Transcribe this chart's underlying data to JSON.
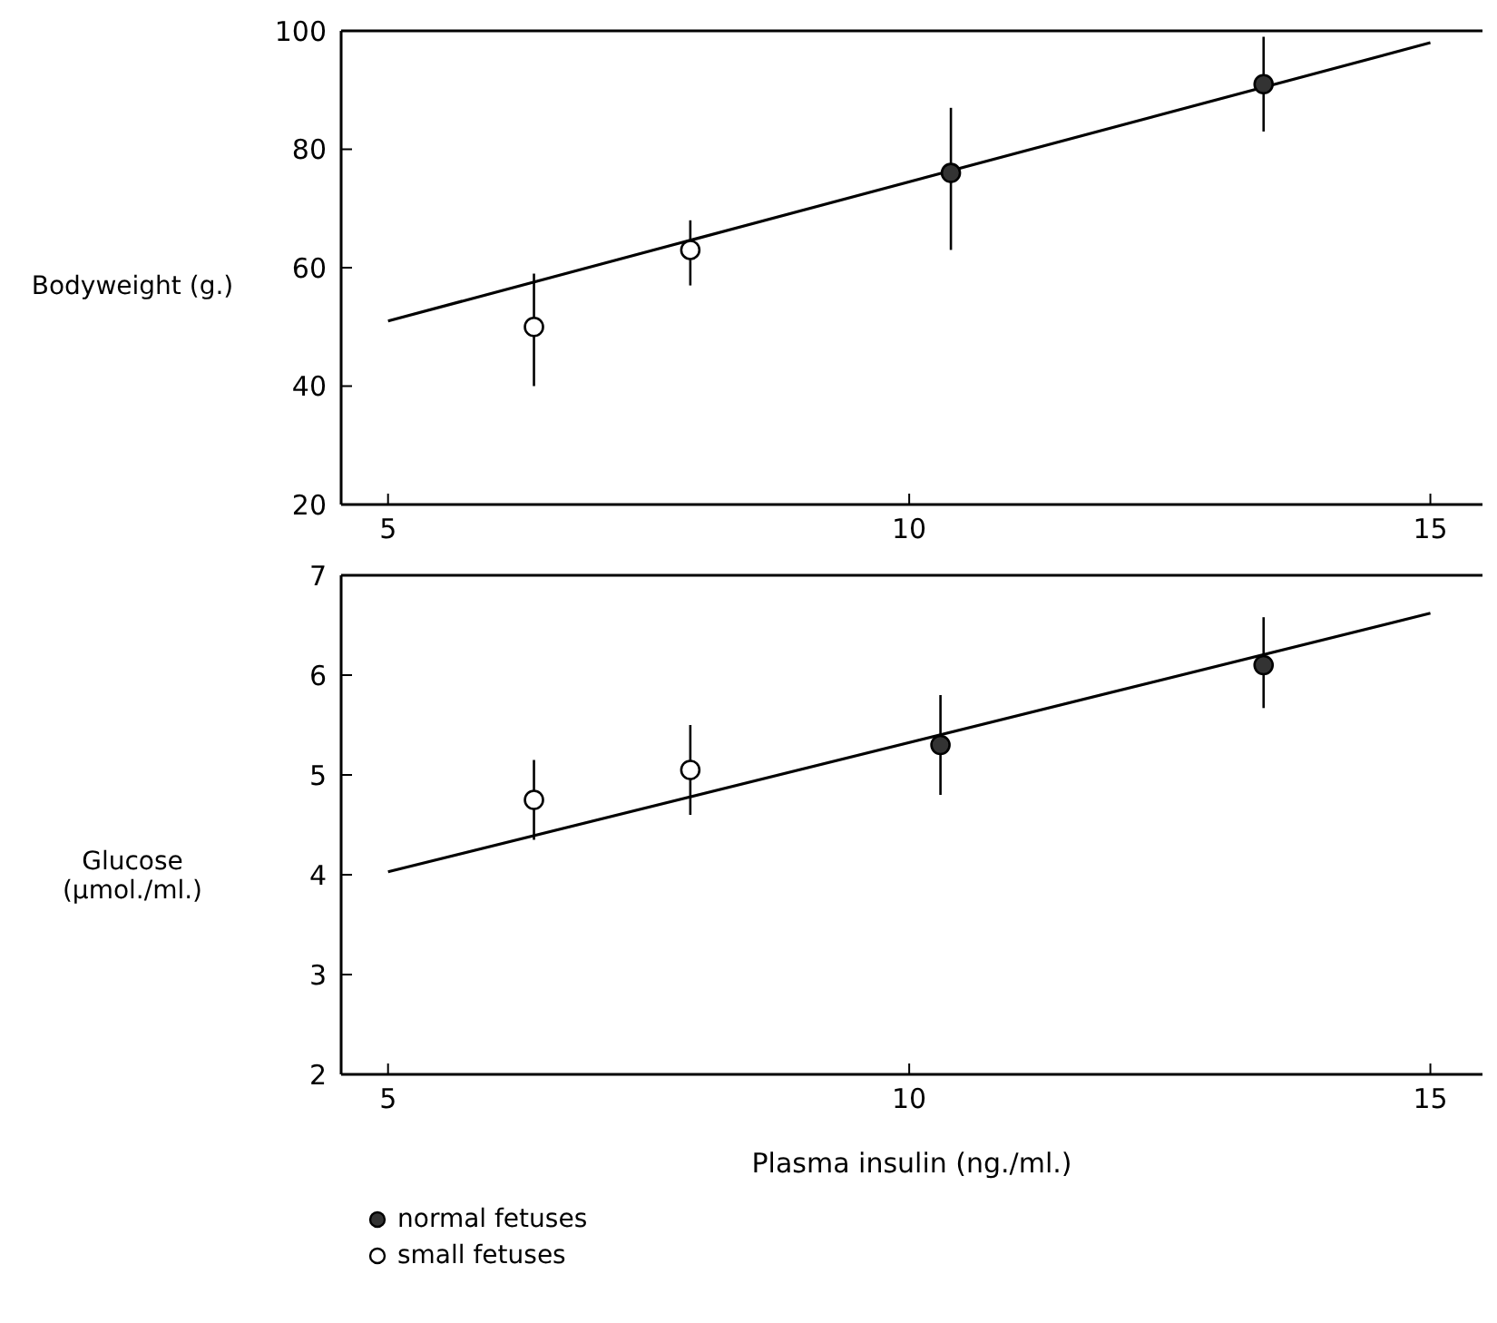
{
  "chart_data": [
    {
      "type": "scatter",
      "ylabel": "Bodyweight (g.)",
      "xlim": [
        4.55,
        15.5
      ],
      "xticks": [
        5,
        10,
        15
      ],
      "ylim": [
        20,
        100
      ],
      "yticks": [
        20,
        40,
        60,
        80,
        100
      ],
      "marker": "circle",
      "grid": false,
      "series": [
        {
          "color": "#333333",
          "x": [
            10.4,
            13.4
          ],
          "values": [
            76,
            91
          ],
          "errors": [
            [
              63,
              87
            ],
            [
              83,
              99
            ]
          ]
        },
        {
          "color": "#ffffff",
          "x": [
            6.4,
            7.9
          ],
          "values": [
            50,
            63
          ],
          "errors": [
            [
              40,
              59
            ],
            [
              57,
              68
            ]
          ]
        },
        {
          "type": "line",
          "marker": "none",
          "color": "#000000",
          "x": [
            5,
            15
          ],
          "values": [
            51,
            98
          ]
        }
      ]
    },
    {
      "type": "scatter",
      "ylabel": "Glucose (µmol./ml.)",
      "xlabel": "Plasma insulin (ng./ml.)",
      "xlim": [
        4.55,
        15.5
      ],
      "xticks": [
        5,
        10,
        15
      ],
      "ylim": [
        2,
        7
      ],
      "yticks": [
        2,
        3,
        4,
        5,
        6,
        7
      ],
      "marker": "circle",
      "grid": false,
      "legend": "bottom left",
      "series": [
        {
          "name": "normal fetuses",
          "color": "#333333",
          "x": [
            10.3,
            13.4
          ],
          "values": [
            5.3,
            6.1
          ],
          "errors": [
            [
              4.8,
              5.8
            ],
            [
              5.67,
              6.58
            ]
          ]
        },
        {
          "name": "small fetuses",
          "color": "#ffffff",
          "x": [
            6.4,
            7.9
          ],
          "values": [
            4.75,
            5.05
          ],
          "errors": [
            [
              4.35,
              5.15
            ],
            [
              4.6,
              5.5
            ]
          ]
        },
        {
          "type": "line",
          "marker": "none",
          "color": "#000000",
          "x": [
            5,
            15
          ],
          "values": [
            4.03,
            6.62
          ]
        }
      ]
    }
  ]
}
